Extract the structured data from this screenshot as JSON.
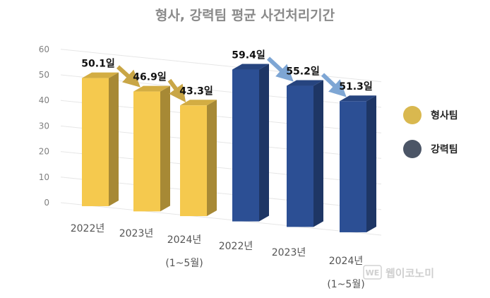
{
  "chart_data": {
    "type": "bar",
    "title": "형사, 강력팀 평균 사건처리기간",
    "categories": [
      {
        "line1": "2022년",
        "line2": ""
      },
      {
        "line1": "2023년",
        "line2": ""
      },
      {
        "line1": "2024년",
        "line2": "(1~5월)"
      },
      {
        "line1": "2022년",
        "line2": ""
      },
      {
        "line1": "2023년",
        "line2": ""
      },
      {
        "line1": "2024년",
        "line2": "(1~5월)"
      }
    ],
    "series": [
      {
        "name": "형사팀",
        "color": "#f5c94e",
        "values": [
          50.1,
          46.9,
          43.3,
          null,
          null,
          null
        ],
        "labels": [
          "50.1일",
          "46.9일",
          "43.3일"
        ]
      },
      {
        "name": "강력팀",
        "color": "#2c4f94",
        "values": [
          null,
          null,
          null,
          59.4,
          55.2,
          51.3
        ],
        "labels": [
          "59.4일",
          "55.2일",
          "51.3일"
        ]
      }
    ],
    "ylim": [
      0,
      60
    ],
    "yticks": [
      "0",
      "10",
      "20",
      "30",
      "40",
      "50",
      "60"
    ],
    "legend_position": "right",
    "legend_colors": [
      "#d9b84f",
      "#4b5566"
    ],
    "arrow_colors": [
      "#c9a646",
      "#7ea6d4"
    ],
    "grid": true
  },
  "watermark": {
    "badge": "WE",
    "text": "웹이코노미"
  }
}
